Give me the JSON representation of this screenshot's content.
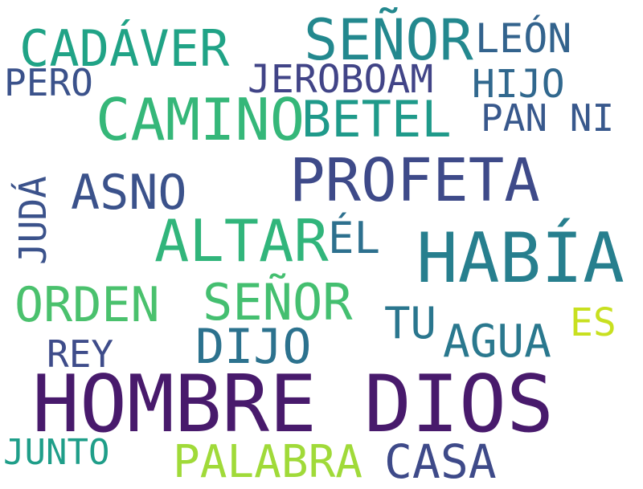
{
  "words": [
    {
      "text": "HOMBRE DIOS",
      "color": "#481a6c"
    },
    {
      "text": "HABÍA",
      "color": "#277f8e"
    },
    {
      "text": "PROFETA",
      "color": "#3e4a89"
    },
    {
      "text": "CAMINO",
      "color": "#35b779"
    },
    {
      "text": "SEÑOR",
      "color": "#23888e"
    },
    {
      "text": "ALTAR",
      "color": "#31b57b"
    },
    {
      "text": "CADÁVER",
      "color": "#20a386"
    },
    {
      "text": "BETEL",
      "color": "#1f9a8a"
    },
    {
      "text": "SEÑOR",
      "color": "#44bf70"
    },
    {
      "text": "ASNO",
      "color": "#3b528b"
    },
    {
      "text": "ORDEN",
      "color": "#4ac16d"
    },
    {
      "text": "DIJO",
      "color": "#2c728e"
    },
    {
      "text": "CASA",
      "color": "#3e4a89"
    },
    {
      "text": "PALABRA",
      "color": "#a0da39"
    },
    {
      "text": "AGUA",
      "color": "#2a788e"
    },
    {
      "text": "LEÓN",
      "color": "#33638d"
    },
    {
      "text": "ÉL",
      "color": "#2d708e"
    },
    {
      "text": "JEROBOAM",
      "color": "#414487"
    },
    {
      "text": "HIJO",
      "color": "#31688e"
    },
    {
      "text": "PAN NI",
      "color": "#38588c"
    },
    {
      "text": "TU",
      "color": "#2a768e"
    },
    {
      "text": "PERO",
      "color": "#3b528b"
    },
    {
      "text": "REY",
      "color": "#3e4c8a"
    },
    {
      "text": "JUNTO",
      "color": "#1f9e89"
    },
    {
      "text": "ES",
      "color": "#c8e020"
    },
    {
      "text": "JUDÁ",
      "color": "#3b528b"
    }
  ]
}
